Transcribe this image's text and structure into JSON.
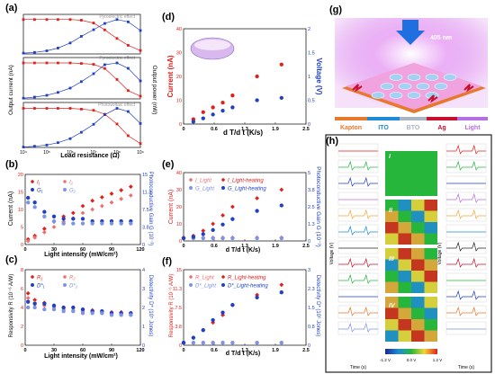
{
  "panels": {
    "a": {
      "label": "(a)",
      "xlabel": "Load resistance (Ω)",
      "ylabel_left": "Output current (nA)",
      "ylabel_right": "Output power (nW)",
      "sub_titles": [
        "Pyroelectric effect",
        "Pyroelectric effect",
        "Photovoltaic effect"
      ],
      "x_ticks": [
        "10⁴",
        "10⁵",
        "10⁶",
        "10⁷",
        "10⁸",
        "10⁹"
      ]
    },
    "b": {
      "label": "(b)",
      "xlabel": "Light intensity (mW/cm²)",
      "ylabel_left": "Current (nA)",
      "ylabel_right": "Photoconductive Gain G (10⁻³)",
      "legend": [
        "I₁",
        "I₂",
        "G₁",
        "G₂"
      ]
    },
    "c": {
      "label": "(c)",
      "xlabel": "Light intensity (mW/cm²)",
      "ylabel_left": "Responsivity R (10⁻⁶ A/W)",
      "ylabel_right": "Detectivity D* (10⁵ Jones)",
      "legend": [
        "R₁",
        "R₂",
        "D*₁",
        "D*₂"
      ]
    },
    "d": {
      "label": "(d)",
      "xlabel": "d T/d t (K/s)",
      "ylabel_left": "Current (nA)",
      "ylabel_right": "Voltage (V)"
    },
    "e": {
      "label": "(e)",
      "xlabel": "d T/d t (K/s)",
      "ylabel_left": "Current (nA)",
      "ylabel_right": "Photoconductive Gain G (10⁻³)",
      "legend": [
        "I_Light",
        "I_Light-heating",
        "G_Light",
        "G_Light-heating"
      ]
    },
    "f": {
      "label": "(f)",
      "xlabel": "d T/d t (K/s)",
      "ylabel_left": "Responsivity R (10⁻⁶ A/W)",
      "ylabel_right": "Detectivity D* (10⁶ Jones)",
      "legend": [
        "R_Light",
        "R_Light-heating",
        "D*_Light",
        "D*_Light-heating"
      ]
    },
    "g": {
      "label": "(g)",
      "laser": "405 nm",
      "legend": [
        "Kapton",
        "ITO",
        "BTO",
        "Ag",
        "Light"
      ]
    },
    "h": {
      "label": "(h)",
      "xlabel": "Time (s)",
      "ylabel": "Voltage (V)",
      "roman": [
        "I",
        "II",
        "III",
        "IV"
      ],
      "colorbar": [
        "-1.2 V",
        "0.0 V",
        "1.2 V"
      ]
    }
  },
  "colors": {
    "red": "#e0201b",
    "blue": "#1f3fc6",
    "navy": "#1a2a8c",
    "green": "#27b63c",
    "kapton": "#e7792f",
    "ito": "#1f8ad6",
    "bto": "#a9b5c4",
    "ag": "#c8102e",
    "light": "#b56fe0"
  },
  "chart_data": [
    {
      "panel": "a",
      "type": "line",
      "xscale": "log",
      "x": [
        10000,
        30000,
        100000,
        300000,
        1000000,
        3000000,
        10000000,
        30000000,
        100000000,
        300000000,
        1000000000
      ],
      "series": [
        {
          "name": "current-1",
          "values": [
            1.0,
            1.0,
            1.0,
            1.0,
            1.0,
            0.98,
            0.9,
            0.7,
            0.45,
            0.25,
            0.1
          ]
        },
        {
          "name": "power-1",
          "values": [
            0.02,
            0.04,
            0.08,
            0.15,
            0.28,
            0.45,
            0.62,
            0.78,
            0.88,
            0.82,
            0.6
          ]
        },
        {
          "name": "current-2",
          "values": [
            13,
            13,
            13,
            13,
            13,
            12.8,
            12.5,
            11,
            7,
            3,
            1
          ]
        },
        {
          "name": "power-2",
          "values": [
            0.02,
            0.05,
            0.1,
            0.18,
            0.3,
            0.48,
            0.7,
            0.95,
            1.0,
            0.85,
            0.5
          ]
        },
        {
          "name": "current-3",
          "values": [
            1.0,
            1.0,
            1.0,
            1.0,
            1.0,
            0.98,
            0.95,
            0.85,
            0.6,
            0.3,
            0.1
          ]
        },
        {
          "name": "power-3",
          "values": [
            0.01,
            0.03,
            0.06,
            0.12,
            0.22,
            0.38,
            0.58,
            0.82,
            0.98,
            0.9,
            0.6
          ]
        }
      ]
    },
    {
      "panel": "b",
      "type": "scatter",
      "xlim": [
        0,
        120
      ],
      "ylim_left": [
        0,
        20
      ],
      "ylim_right": [
        0,
        15
      ],
      "x": [
        3,
        10,
        20,
        30,
        40,
        50,
        60,
        70,
        80,
        90,
        100,
        110
      ],
      "series": [
        {
          "name": "I₁",
          "values": [
            1.5,
            2.5,
            4.5,
            6.5,
            8,
            9,
            11,
            12.5,
            13.5,
            14.5,
            15.5,
            16.5
          ]
        },
        {
          "name": "I₂",
          "values": [
            1,
            2,
            3.5,
            5,
            6.5,
            7.5,
            9,
            10,
            11,
            12,
            13,
            14
          ]
        },
        {
          "name": "G₁",
          "values": [
            10,
            9,
            7,
            6,
            5.5,
            5.5,
            5.5,
            5,
            5,
            5,
            5,
            5
          ]
        },
        {
          "name": "G₂",
          "values": [
            9,
            8,
            6,
            5,
            4.5,
            4.5,
            4.5,
            4.5,
            4.5,
            4.5,
            4.5,
            4.5
          ]
        }
      ]
    },
    {
      "panel": "c",
      "type": "scatter",
      "xlim": [
        0,
        120
      ],
      "ylim_left": [
        0,
        8
      ],
      "ylim_right": [
        0,
        4
      ],
      "x": [
        3,
        10,
        20,
        30,
        40,
        50,
        60,
        70,
        80,
        90,
        100,
        110
      ],
      "series": [
        {
          "name": "R₁",
          "values": [
            5.5,
            4.8,
            4.5,
            4.2,
            4.0,
            4.0,
            3.8,
            3.7,
            3.6,
            3.5,
            3.5,
            3.4
          ]
        },
        {
          "name": "R₂",
          "values": [
            5.0,
            4.5,
            4.2,
            4.0,
            3.8,
            3.7,
            3.6,
            3.5,
            3.4,
            3.3,
            3.3,
            3.2
          ]
        },
        {
          "name": "D*₁",
          "values": [
            2.3,
            2.2,
            2.2,
            2.1,
            2.0,
            2.0,
            1.9,
            1.8,
            1.8,
            1.7,
            1.7,
            1.7
          ]
        },
        {
          "name": "D*₂",
          "values": [
            2.0,
            2.0,
            1.9,
            1.9,
            1.8,
            1.8,
            1.7,
            1.7,
            1.7,
            1.6,
            1.6,
            1.6
          ]
        }
      ]
    },
    {
      "panel": "d",
      "type": "scatter",
      "xlim": [
        0,
        2.5
      ],
      "ylim_left": [
        0,
        40
      ],
      "ylim_right": [
        0,
        2.0
      ],
      "x": [
        0.2,
        0.4,
        0.6,
        0.8,
        1.0,
        1.5,
        2.0
      ],
      "series": [
        {
          "name": "Current",
          "values": [
            2,
            5,
            7,
            9,
            12,
            20,
            25
          ]
        },
        {
          "name": "Voltage",
          "values": [
            0.05,
            0.12,
            0.2,
            0.28,
            0.35,
            0.5,
            0.55
          ]
        }
      ]
    },
    {
      "panel": "e",
      "type": "scatter",
      "xlim": [
        0,
        2.5
      ],
      "ylim_left": [
        0,
        40
      ],
      "ylim_right": [
        0,
        5
      ],
      "x": [
        0.0,
        0.2,
        0.4,
        0.6,
        0.8,
        1.0,
        1.5,
        2.0
      ],
      "series": [
        {
          "name": "I_Light",
          "values": [
            2,
            2,
            2,
            2,
            2,
            2,
            2,
            2
          ]
        },
        {
          "name": "I_Light-heating",
          "values": [
            2,
            3,
            6,
            10,
            15,
            20,
            25,
            30
          ]
        },
        {
          "name": "G_Light",
          "values": [
            0.2,
            0.2,
            0.2,
            0.2,
            0.2,
            0.2,
            0.2,
            0.2
          ]
        },
        {
          "name": "G_Light-heating",
          "values": [
            0.2,
            0.3,
            0.5,
            0.8,
            1.2,
            1.6,
            2.2,
            2.6
          ]
        }
      ]
    },
    {
      "panel": "f",
      "type": "scatter",
      "xlim": [
        0,
        2.5
      ],
      "ylim_left": [
        0,
        15
      ],
      "ylim_right": [
        0,
        3
      ],
      "x": [
        0.0,
        0.2,
        0.4,
        0.6,
        0.8,
        1.0,
        1.5,
        2.0
      ],
      "series": [
        {
          "name": "R_Light",
          "values": [
            0.5,
            0.5,
            0.5,
            0.5,
            0.5,
            0.5,
            0.5,
            0.5
          ]
        },
        {
          "name": "R_Light-heating",
          "values": [
            0.5,
            1.5,
            3,
            4.5,
            6,
            8,
            10,
            12
          ]
        },
        {
          "name": "D*_Light",
          "values": [
            0.1,
            0.1,
            0.1,
            0.1,
            0.1,
            0.1,
            0.1,
            0.1
          ]
        },
        {
          "name": "D*_Light-heating",
          "values": [
            0.1,
            0.3,
            0.6,
            1.0,
            1.3,
            1.6,
            1.9,
            2.1
          ]
        }
      ]
    }
  ]
}
